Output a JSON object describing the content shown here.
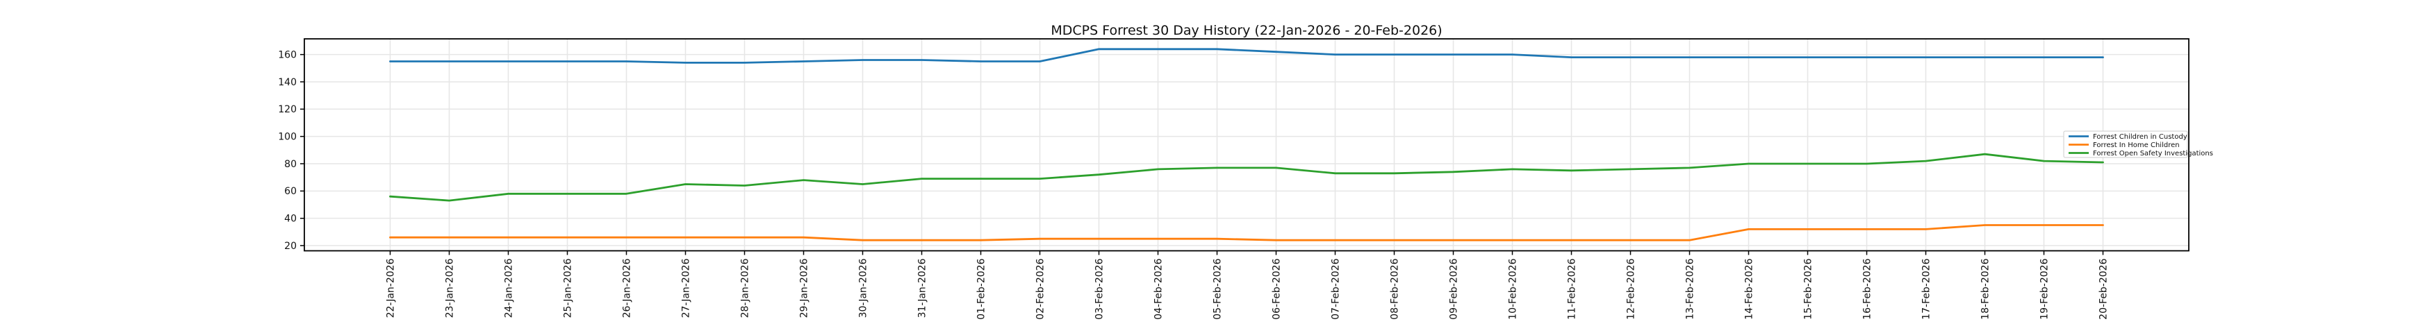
{
  "chart_data": {
    "type": "line",
    "title": "MDCPS Forrest 30 Day History (22-Jan-2026 - 20-Feb-2026)",
    "xlabel": "",
    "ylabel": "",
    "x_labels": [
      "22-Jan-2026",
      "23-Jan-2026",
      "24-Jan-2026",
      "25-Jan-2026",
      "26-Jan-2026",
      "27-Jan-2026",
      "28-Jan-2026",
      "29-Jan-2026",
      "30-Jan-2026",
      "31-Jan-2026",
      "01-Feb-2026",
      "02-Feb-2026",
      "03-Feb-2026",
      "04-Feb-2026",
      "05-Feb-2026",
      "06-Feb-2026",
      "07-Feb-2026",
      "08-Feb-2026",
      "09-Feb-2026",
      "10-Feb-2026",
      "11-Feb-2026",
      "12-Feb-2026",
      "13-Feb-2026",
      "14-Feb-2026",
      "15-Feb-2026",
      "16-Feb-2026",
      "17-Feb-2026",
      "18-Feb-2026",
      "19-Feb-2026",
      "20-Feb-2026"
    ],
    "y_ticks": [
      20,
      40,
      60,
      80,
      100,
      120,
      140,
      160
    ],
    "ylim": [
      16.2,
      171.5
    ],
    "grid": true,
    "legend_position": "center right",
    "series": [
      {
        "name": "Forrest Children in Custody",
        "color": "#1f77b4",
        "values": [
          155,
          155,
          155,
          155,
          155,
          154,
          154,
          155,
          156,
          156,
          155,
          155,
          164,
          164,
          164,
          162,
          160,
          160,
          160,
          160,
          158,
          158,
          158,
          158,
          158,
          158,
          158,
          158,
          158,
          158
        ]
      },
      {
        "name": "Forrest In Home Children",
        "color": "#ff7f0e",
        "values": [
          26,
          26,
          26,
          26,
          26,
          26,
          26,
          26,
          24,
          24,
          24,
          25,
          25,
          25,
          25,
          24,
          24,
          24,
          24,
          24,
          24,
          24,
          24,
          32,
          32,
          32,
          32,
          35,
          35,
          35
        ]
      },
      {
        "name": "Forrest Open Safety Investigations",
        "color": "#2ca02c",
        "values": [
          56,
          53,
          58,
          58,
          58,
          65,
          64,
          68,
          65,
          69,
          69,
          69,
          72,
          76,
          77,
          77,
          73,
          73,
          74,
          76,
          75,
          76,
          77,
          80,
          80,
          80,
          82,
          87,
          82,
          81
        ]
      }
    ],
    "colors": {
      "grid": "#e6e6e6",
      "spine": "#000000",
      "text": "#111111",
      "legend_border": "#cccccc"
    }
  }
}
